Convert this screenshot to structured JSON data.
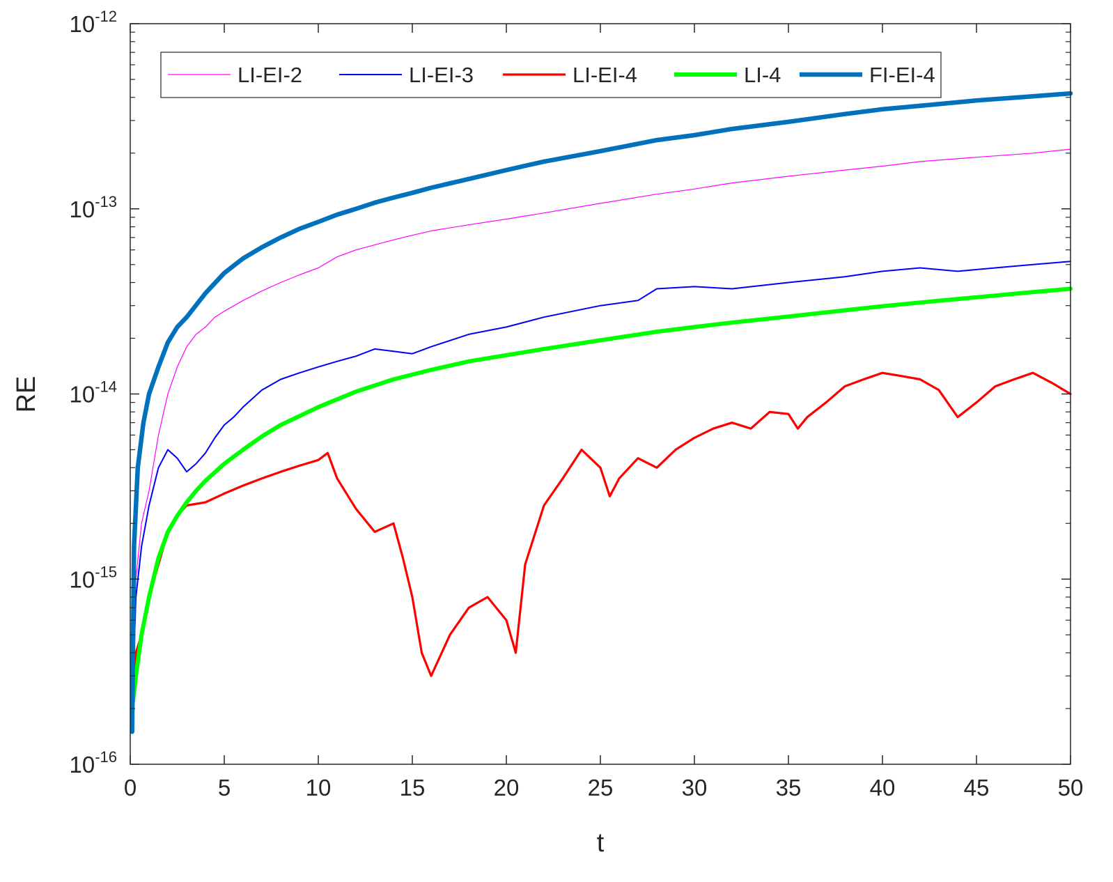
{
  "chart_data": {
    "type": "line",
    "xlabel": "t",
    "ylabel": "RE",
    "xlim": [
      0,
      50
    ],
    "ylim": [
      1e-16,
      1e-12
    ],
    "yscale": "log",
    "grid": false,
    "legend_position": "top",
    "x_ticks": [
      "0",
      "5",
      "10",
      "15",
      "20",
      "25",
      "30",
      "35",
      "40",
      "45",
      "50"
    ],
    "y_ticks": [
      {
        "base": "10",
        "exp": "-16"
      },
      {
        "base": "10",
        "exp": "-15"
      },
      {
        "base": "10",
        "exp": "-14"
      },
      {
        "base": "10",
        "exp": "-13"
      },
      {
        "base": "10",
        "exp": "-12"
      }
    ],
    "series": [
      {
        "name": "LI-EI-2",
        "color": "#ff00ff",
        "x": [
          0.1,
          0.3,
          0.6,
          1.0,
          1.5,
          2.0,
          2.5,
          3.0,
          3.5,
          4.0,
          4.5,
          5.0,
          6.0,
          7.0,
          8.0,
          9.0,
          10.0,
          11.0,
          12.0,
          14.0,
          15.0,
          16.0,
          18.0,
          20.0,
          22.0,
          25.0,
          28.0,
          30.0,
          32.0,
          35.0,
          38.0,
          40.0,
          42.0,
          45.0,
          48.0,
          50.0
        ],
        "y": [
          3e-16,
          1e-15,
          2e-15,
          3e-15,
          6e-15,
          1e-14,
          1.4e-14,
          1.8e-14,
          2.1e-14,
          2.3e-14,
          2.6e-14,
          2.8e-14,
          3.2e-14,
          3.6e-14,
          4e-14,
          4.4e-14,
          4.8e-14,
          5.5e-14,
          6e-14,
          6.8e-14,
          7.2e-14,
          7.6e-14,
          8.2e-14,
          8.8e-14,
          9.5e-14,
          1.07e-13,
          1.2e-13,
          1.28e-13,
          1.38e-13,
          1.5e-13,
          1.62e-13,
          1.7e-13,
          1.8e-13,
          1.9e-13,
          2e-13,
          2.1e-13
        ]
      },
      {
        "name": "LI-EI-3",
        "color": "#0000ff",
        "x": [
          0.1,
          0.3,
          0.6,
          1.0,
          1.5,
          2.0,
          2.5,
          3.0,
          3.5,
          4.0,
          4.5,
          5.0,
          5.5,
          6.0,
          7.0,
          8.0,
          9.0,
          10.0,
          11.0,
          12.0,
          13.0,
          14.0,
          15.0,
          16.0,
          18.0,
          20.0,
          22.0,
          25.0,
          27.0,
          28.0,
          30.0,
          32.0,
          35.0,
          38.0,
          40.0,
          42.0,
          44.0,
          46.0,
          48.0,
          50.0
        ],
        "y": [
          2e-16,
          8e-16,
          1.5e-15,
          2.5e-15,
          4e-15,
          5e-15,
          4.5e-15,
          3.8e-15,
          4.2e-15,
          4.8e-15,
          5.8e-15,
          6.8e-15,
          7.5e-15,
          8.5e-15,
          1.05e-14,
          1.2e-14,
          1.3e-14,
          1.4e-14,
          1.5e-14,
          1.6e-14,
          1.75e-14,
          1.7e-14,
          1.65e-14,
          1.8e-14,
          2.1e-14,
          2.3e-14,
          2.6e-14,
          3e-14,
          3.2e-14,
          3.7e-14,
          3.8e-14,
          3.7e-14,
          4e-14,
          4.3e-14,
          4.6e-14,
          4.8e-14,
          4.6e-14,
          4.8e-14,
          5e-14,
          5.2e-14
        ]
      },
      {
        "name": "LI-EI-4",
        "color": "#ff0000",
        "x": [
          0.1,
          0.3,
          0.6,
          1.0,
          1.5,
          2.0,
          2.5,
          3.0,
          4.0,
          5.0,
          6.0,
          7.0,
          8.0,
          9.0,
          10.0,
          10.5,
          11.0,
          12.0,
          13.0,
          14.0,
          14.5,
          15.0,
          15.5,
          16.0,
          17.0,
          18.0,
          19.0,
          20.0,
          20.5,
          21.0,
          22.0,
          23.0,
          24.0,
          25.0,
          25.5,
          26.0,
          27.0,
          28.0,
          29.0,
          30.0,
          31.0,
          32.0,
          33.0,
          34.0,
          35.0,
          35.5,
          36.0,
          37.0,
          38.0,
          39.0,
          40.0,
          41.0,
          42.0,
          43.0,
          44.0,
          45.0,
          46.0,
          47.0,
          48.0,
          49.0,
          50.0
        ],
        "y": [
          2e-16,
          4e-16,
          5e-16,
          8e-16,
          1.2e-15,
          1.8e-15,
          2.2e-15,
          2.5e-15,
          2.6e-15,
          2.9e-15,
          3.2e-15,
          3.5e-15,
          3.8e-15,
          4.1e-15,
          4.4e-15,
          4.8e-15,
          3.5e-15,
          2.4e-15,
          1.8e-15,
          2e-15,
          1.3e-15,
          8e-16,
          4e-16,
          3e-16,
          5e-16,
          7e-16,
          8e-16,
          6e-16,
          4e-16,
          1.2e-15,
          2.5e-15,
          3.5e-15,
          5e-15,
          4e-15,
          2.8e-15,
          3.5e-15,
          4.5e-15,
          4e-15,
          5e-15,
          5.8e-15,
          6.5e-15,
          7e-15,
          6.5e-15,
          8e-15,
          7.8e-15,
          6.5e-15,
          7.5e-15,
          9e-15,
          1.1e-14,
          1.2e-14,
          1.3e-14,
          1.25e-14,
          1.2e-14,
          1.05e-14,
          7.5e-15,
          9e-15,
          1.1e-14,
          1.2e-14,
          1.3e-14,
          1.15e-14,
          1e-14
        ]
      },
      {
        "name": "LI-4",
        "color": "#00ff00",
        "x": [
          0.1,
          0.3,
          0.6,
          1.0,
          1.5,
          2.0,
          2.5,
          3.0,
          3.5,
          4.0,
          5.0,
          6.0,
          7.0,
          8.0,
          9.0,
          10.0,
          12.0,
          14.0,
          16.0,
          18.0,
          20.0,
          22.0,
          25.0,
          28.0,
          30.0,
          32.0,
          35.0,
          38.0,
          40.0,
          42.0,
          45.0,
          48.0,
          50.0
        ],
        "y": [
          2e-16,
          3e-16,
          5e-16,
          8e-16,
          1.3e-15,
          1.8e-15,
          2.2e-15,
          2.6e-15,
          3e-15,
          3.4e-15,
          4.2e-15,
          5e-15,
          5.9e-15,
          6.8e-15,
          7.6e-15,
          8.5e-15,
          1.03e-14,
          1.2e-14,
          1.35e-14,
          1.5e-14,
          1.62e-14,
          1.75e-14,
          1.95e-14,
          2.17e-14,
          2.3e-14,
          2.43e-14,
          2.62e-14,
          2.83e-14,
          2.98e-14,
          3.12e-14,
          3.33e-14,
          3.55e-14,
          3.7e-14
        ]
      },
      {
        "name": "FI-EI-4",
        "color": "#0072bd",
        "x": [
          0.1,
          0.2,
          0.4,
          0.7,
          1.0,
          1.5,
          2.0,
          2.5,
          3.0,
          4.0,
          5.0,
          6.0,
          7.0,
          8.0,
          9.0,
          10.0,
          11.0,
          12.0,
          13.0,
          14.0,
          15.0,
          16.0,
          18.0,
          20.0,
          22.0,
          25.0,
          28.0,
          30.0,
          32.0,
          35.0,
          38.0,
          40.0,
          42.0,
          45.0,
          48.0,
          50.0
        ],
        "y": [
          1.5e-16,
          1.5e-15,
          4e-15,
          7e-15,
          1e-14,
          1.4e-14,
          1.9e-14,
          2.3e-14,
          2.6e-14,
          3.5e-14,
          4.5e-14,
          5.4e-14,
          6.2e-14,
          7e-14,
          7.8e-14,
          8.5e-14,
          9.3e-14,
          1e-13,
          1.08e-13,
          1.15e-13,
          1.22e-13,
          1.3e-13,
          1.45e-13,
          1.62e-13,
          1.8e-13,
          2.05e-13,
          2.35e-13,
          2.5e-13,
          2.7e-13,
          2.95e-13,
          3.25e-13,
          3.45e-13,
          3.6e-13,
          3.85e-13,
          4.05e-13,
          4.2e-13
        ]
      }
    ]
  }
}
